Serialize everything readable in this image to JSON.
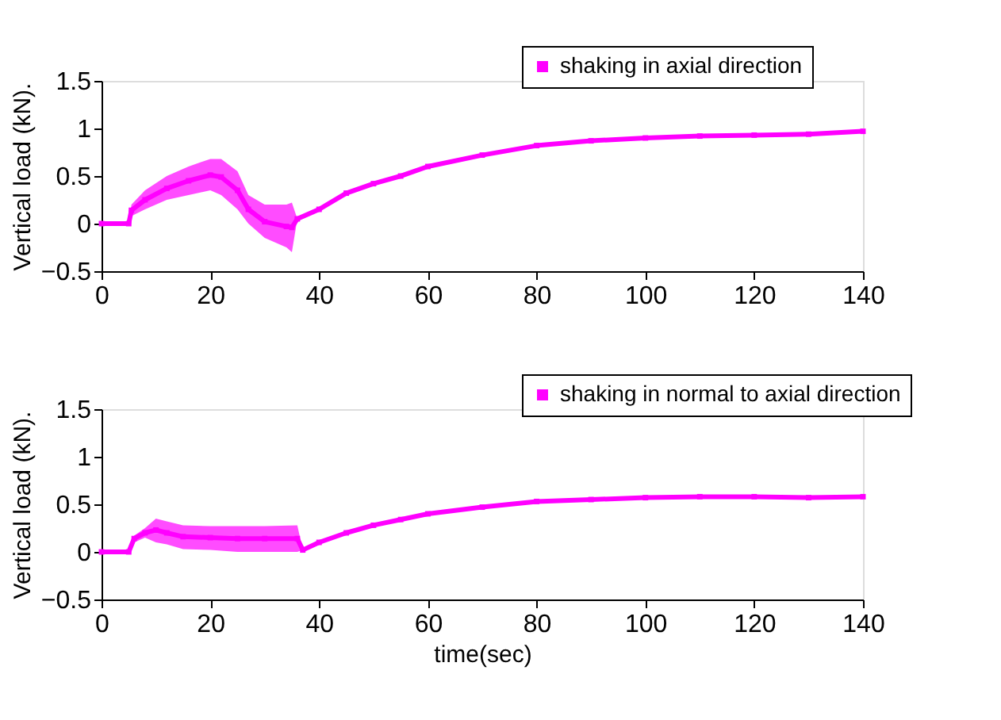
{
  "chart_data": [
    {
      "type": "line",
      "ylabel": "Vertical load (kN).",
      "xlim": [
        0,
        140
      ],
      "xticks": [
        0,
        20,
        40,
        60,
        80,
        100,
        120,
        140
      ],
      "ylim": [
        -0.5,
        1.5
      ],
      "yticks": [
        -0.5,
        0,
        0.5,
        1,
        1.5
      ],
      "grid": false,
      "legend": "top right",
      "marker": "square",
      "line_style": "solid",
      "series": [
        {
          "name": "shaking in axial direction",
          "color": "#ff00ff",
          "x": [
            0,
            5,
            5.5,
            8,
            12,
            16,
            20,
            22,
            25,
            27,
            30,
            34,
            35,
            36,
            40,
            45,
            50,
            55,
            60,
            70,
            80,
            90,
            100,
            110,
            120,
            130,
            140
          ],
          "values": [
            0,
            0,
            0.14,
            0.25,
            0.37,
            0.45,
            0.51,
            0.49,
            0.35,
            0.15,
            0.02,
            -0.03,
            -0.04,
            0.05,
            0.15,
            0.32,
            0.42,
            0.5,
            0.6,
            0.72,
            0.82,
            0.87,
            0.9,
            0.92,
            0.93,
            0.94,
            0.97
          ],
          "lower": [
            0,
            0,
            0.08,
            0.15,
            0.25,
            0.3,
            0.35,
            0.3,
            0.15,
            0,
            -0.15,
            -0.25,
            -0.3,
            0.05,
            0.15,
            0.32,
            0.42,
            0.5,
            0.6,
            0.72,
            0.82,
            0.87,
            0.9,
            0.92,
            0.93,
            0.94,
            0.97
          ],
          "upper": [
            0,
            0,
            0.2,
            0.35,
            0.5,
            0.6,
            0.68,
            0.68,
            0.55,
            0.3,
            0.2,
            0.2,
            0.22,
            0.05,
            0.15,
            0.32,
            0.42,
            0.5,
            0.6,
            0.72,
            0.82,
            0.87,
            0.9,
            0.92,
            0.93,
            0.94,
            0.97
          ]
        }
      ]
    },
    {
      "type": "line",
      "xlabel": "time(sec)",
      "ylabel": "Vertical load (kN).",
      "xlim": [
        0,
        140
      ],
      "xticks": [
        0,
        20,
        40,
        60,
        80,
        100,
        120,
        140
      ],
      "ylim": [
        -0.5,
        1.5
      ],
      "yticks": [
        -0.5,
        0,
        0.5,
        1,
        1.5
      ],
      "grid": false,
      "legend": "top right",
      "marker": "square",
      "line_style": "solid",
      "series": [
        {
          "name": "shaking in normal to axial direction",
          "color": "#ff00ff",
          "x": [
            0,
            5,
            6,
            8,
            10,
            12,
            15,
            20,
            25,
            30,
            36,
            37,
            40,
            45,
            50,
            55,
            60,
            70,
            80,
            90,
            100,
            110,
            120,
            130,
            140
          ],
          "values": [
            0,
            0,
            0.14,
            0.2,
            0.23,
            0.2,
            0.16,
            0.15,
            0.14,
            0.14,
            0.14,
            0.02,
            0.1,
            0.2,
            0.28,
            0.34,
            0.4,
            0.47,
            0.53,
            0.55,
            0.57,
            0.58,
            0.58,
            0.57,
            0.58
          ],
          "lower": [
            0,
            0,
            0.1,
            0.15,
            0.1,
            0.08,
            0.03,
            0.02,
            0,
            0,
            0,
            0.02,
            0.1,
            0.2,
            0.28,
            0.34,
            0.4,
            0.47,
            0.53,
            0.55,
            0.57,
            0.58,
            0.58,
            0.57,
            0.58
          ],
          "upper": [
            0,
            0,
            0.17,
            0.25,
            0.35,
            0.32,
            0.28,
            0.27,
            0.27,
            0.27,
            0.28,
            0.02,
            0.1,
            0.2,
            0.28,
            0.34,
            0.4,
            0.47,
            0.53,
            0.55,
            0.57,
            0.58,
            0.58,
            0.57,
            0.58
          ]
        }
      ]
    }
  ]
}
